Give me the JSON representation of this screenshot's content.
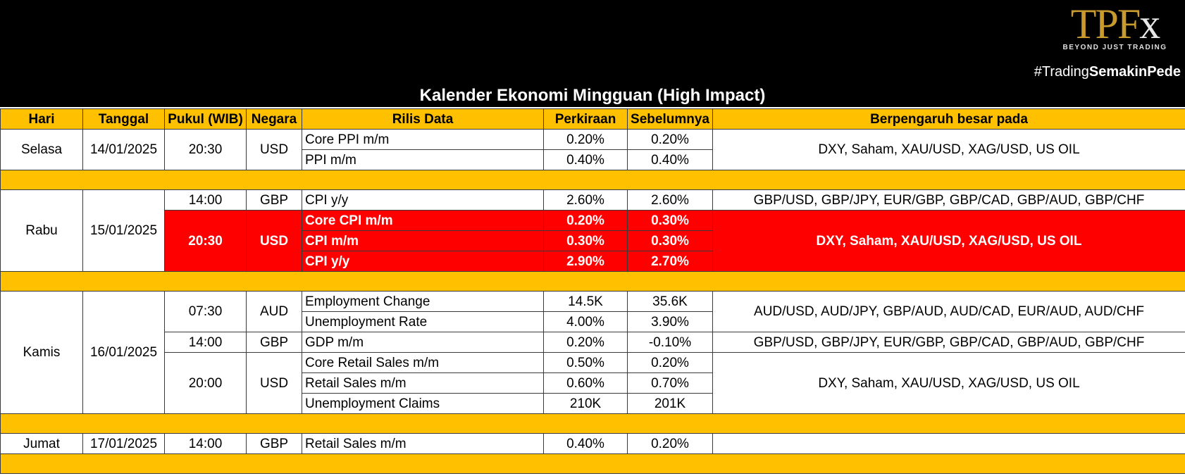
{
  "brand": {
    "logo_text": "TPFx",
    "logo_main": "TPF",
    "logo_accent": "x",
    "tagline": "BEYOND JUST TRADING",
    "hashtag_prefix": "#Trading",
    "hashtag_bold": "SemakinPede"
  },
  "title": "Kalender Ekonomi Mingguan (High Impact)",
  "headers": {
    "hari": "Hari",
    "tanggal": "Tanggal",
    "pukul": "Pukul (WIB)",
    "negara": "Negara",
    "rilis": "Rilis Data",
    "perkiraan": "Perkiraan",
    "sebelumnya": "Sebelumnya",
    "pengaruh": "Berpengaruh besar pada"
  },
  "days": [
    {
      "day": "Selasa",
      "date": "14/01/2025",
      "groups": [
        {
          "time": "20:30",
          "country": "USD",
          "impact": "DXY, Saham, XAU/USD, XAG/USD, US OIL",
          "highlight": false,
          "events": [
            {
              "name": "Core PPI m/m",
              "forecast": "0.20%",
              "previous": "0.20%"
            },
            {
              "name": "PPI m/m",
              "forecast": "0.40%",
              "previous": "0.40%"
            }
          ]
        }
      ]
    },
    {
      "day": "Rabu",
      "date": "15/01/2025",
      "groups": [
        {
          "time": "14:00",
          "country": "GBP",
          "impact": "GBP/USD, GBP/JPY, EUR/GBP, GBP/CAD, GBP/AUD, GBP/CHF",
          "highlight": false,
          "events": [
            {
              "name": "CPI y/y",
              "forecast": "2.60%",
              "previous": "2.60%"
            }
          ]
        },
        {
          "time": "20:30",
          "country": "USD",
          "impact": "DXY, Saham, XAU/USD, XAG/USD, US OIL",
          "highlight": true,
          "events": [
            {
              "name": "Core CPI m/m",
              "forecast": "0.20%",
              "previous": "0.30%"
            },
            {
              "name": "CPI m/m",
              "forecast": "0.30%",
              "previous": "0.30%"
            },
            {
              "name": "CPI y/y",
              "forecast": "2.90%",
              "previous": "2.70%"
            }
          ]
        }
      ]
    },
    {
      "day": "Kamis",
      "date": "16/01/2025",
      "groups": [
        {
          "time": "07:30",
          "country": "AUD",
          "impact": "AUD/USD, AUD/JPY, GBP/AUD, AUD/CAD, EUR/AUD, AUD/CHF",
          "highlight": false,
          "events": [
            {
              "name": "Employment Change",
              "forecast": "14.5K",
              "previous": "35.6K"
            },
            {
              "name": "Unemployment Rate",
              "forecast": "4.00%",
              "previous": "3.90%"
            }
          ]
        },
        {
          "time": "14:00",
          "country": "GBP",
          "impact": "GBP/USD, GBP/JPY, EUR/GBP, GBP/CAD, GBP/AUD, GBP/CHF",
          "highlight": false,
          "events": [
            {
              "name": "GDP m/m",
              "forecast": "0.20%",
              "previous": "-0.10%"
            }
          ]
        },
        {
          "time": "20:00",
          "country": "USD",
          "impact": "DXY, Saham, XAU/USD, XAG/USD, US OIL",
          "highlight": false,
          "events": [
            {
              "name": "Core Retail Sales m/m",
              "forecast": "0.50%",
              "previous": "0.20%"
            },
            {
              "name": "Retail Sales m/m",
              "forecast": "0.60%",
              "previous": "0.70%"
            },
            {
              "name": "Unemployment Claims",
              "forecast": "210K",
              "previous": "201K"
            }
          ]
        }
      ]
    },
    {
      "day": "Jumat",
      "date": "17/01/2025",
      "groups": [
        {
          "time": "14:00",
          "country": "GBP",
          "impact": "",
          "highlight": false,
          "events": [
            {
              "name": "Retail Sales m/m",
              "forecast": "0.40%",
              "previous": "0.20%"
            }
          ]
        }
      ]
    }
  ],
  "colors": {
    "header_bg": "#000000",
    "accent_yellow": "#ffc000",
    "highlight_red": "#ff0000",
    "logo_gold": "#c99a2e"
  }
}
